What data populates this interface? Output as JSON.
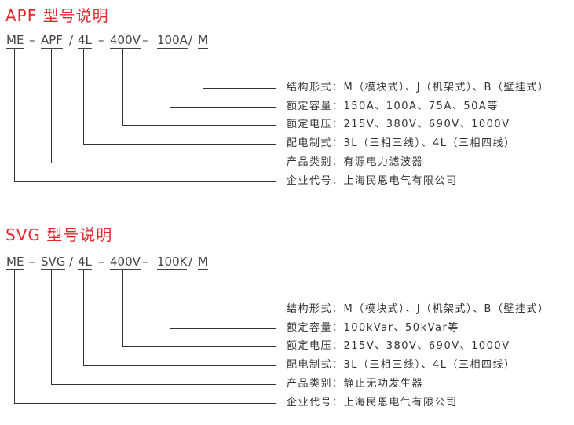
{
  "sections": [
    {
      "title": "APF 型号说明",
      "code": [
        {
          "text": "ME",
          "code": true
        },
        {
          "text": "–",
          "code": false
        },
        {
          "text": "APF",
          "code": true
        },
        {
          "text": "/",
          "code": false
        },
        {
          "text": "4L",
          "code": true
        },
        {
          "text": "–",
          "code": false
        },
        {
          "text": "400V",
          "code": true
        },
        {
          "text": "–",
          "code": false
        },
        {
          "text": "100A",
          "code": true
        },
        {
          "text": "/",
          "code": false
        },
        {
          "text": "M",
          "code": true
        }
      ],
      "labels": [
        "结构形式：M（模块式）、J（机架式）、B（壁挂式）",
        "额定容量：150A、100A、75A、50A等",
        "额定电压：215V、380V、690V、1000V",
        "配电制式：3L（三相三线）、4L（三相四线）",
        "产品类别：有源电力滤波器",
        "企业代号：上海民恩电气有限公司"
      ]
    },
    {
      "title": "SVG 型号说明",
      "code": [
        {
          "text": "ME",
          "code": true
        },
        {
          "text": "–",
          "code": false
        },
        {
          "text": "SVG",
          "code": true
        },
        {
          "text": "/",
          "code": false
        },
        {
          "text": "4L",
          "code": true
        },
        {
          "text": "–",
          "code": false
        },
        {
          "text": "400V",
          "code": true
        },
        {
          "text": "–",
          "code": false
        },
        {
          "text": "100K",
          "code": true
        },
        {
          "text": "/",
          "code": false
        },
        {
          "text": "M",
          "code": true
        }
      ],
      "labels": [
        "结构形式：M（模块式）、J（机架式）、B（壁挂式）",
        "额定容量：100kVar、50kVar等",
        "额定电压：215V、380V、690V、1000V",
        "配电制式：3L（三相三线）、4L（三相四线）",
        "产品类别：静止无功发生器",
        "企业代号：上海民恩电气有限公司"
      ]
    }
  ]
}
